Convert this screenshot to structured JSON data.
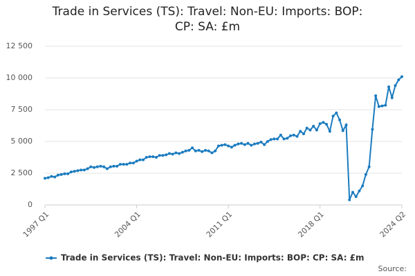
{
  "chart_data": {
    "type": "line",
    "title": "Trade in Services (TS): Travel: Non-EU: Imports: BOP: CP: SA: £m",
    "source": "Source:",
    "categories": [
      "1997 Q1",
      null,
      null,
      null,
      null,
      null,
      null,
      null,
      null,
      null,
      null,
      null,
      null,
      null,
      null,
      null,
      null,
      null,
      null,
      null,
      null,
      null,
      null,
      null,
      null,
      null,
      null,
      null,
      "2004 Q1",
      null,
      null,
      null,
      null,
      null,
      null,
      null,
      null,
      null,
      null,
      null,
      null,
      null,
      null,
      null,
      null,
      null,
      null,
      null,
      null,
      null,
      null,
      null,
      null,
      null,
      null,
      null,
      "2011 Q1",
      null,
      null,
      null,
      null,
      null,
      null,
      null,
      null,
      null,
      null,
      null,
      null,
      null,
      null,
      null,
      null,
      null,
      null,
      null,
      null,
      null,
      null,
      null,
      null,
      null,
      null,
      null,
      "2018 Q1",
      null,
      null,
      null,
      null,
      null,
      null,
      null,
      null,
      null,
      null,
      null,
      null,
      null,
      null,
      null,
      null,
      null,
      null,
      null,
      null,
      null,
      null,
      null,
      null,
      "2024 Q2"
    ],
    "series": [
      {
        "name": "Trade in Services (TS): Travel: Non-EU: Imports: BOP: CP: SA: £m",
        "color": "#1a7bbf",
        "values": [
          2100,
          2150,
          2250,
          2200,
          2350,
          2400,
          2450,
          2450,
          2600,
          2650,
          2700,
          2750,
          2750,
          2850,
          3000,
          2950,
          3000,
          3050,
          3000,
          2850,
          3000,
          3050,
          3050,
          3200,
          3200,
          3200,
          3300,
          3300,
          3450,
          3550,
          3550,
          3750,
          3800,
          3800,
          3750,
          3900,
          3900,
          3950,
          4050,
          4000,
          4100,
          4050,
          4150,
          4250,
          4300,
          4500,
          4250,
          4300,
          4200,
          4300,
          4250,
          4100,
          4250,
          4650,
          4700,
          4750,
          4650,
          4550,
          4700,
          4800,
          4850,
          4750,
          4850,
          4700,
          4800,
          4850,
          4950,
          4750,
          5000,
          5150,
          5200,
          5200,
          5500,
          5200,
          5250,
          5450,
          5500,
          5400,
          5800,
          5600,
          6050,
          5900,
          6200,
          5900,
          6400,
          6500,
          6350,
          5800,
          7000,
          7250,
          6700,
          5850,
          6300,
          400,
          1000,
          650,
          1100,
          1500,
          2400,
          3000,
          5950,
          8600,
          7750,
          7800,
          7850,
          9300,
          8450,
          9400,
          9850,
          10100
        ]
      }
    ],
    "ylim": [
      0,
      12500
    ],
    "yticks": [
      0,
      {
        "value": 2500,
        "label": "2 500"
      },
      {
        "value": 5000,
        "label": "5 000"
      },
      {
        "value": 7500,
        "label": "7 500"
      },
      {
        "value": 10000,
        "label": "10 000"
      },
      {
        "value": 12500,
        "label": "12 500"
      }
    ],
    "grid": true
  }
}
